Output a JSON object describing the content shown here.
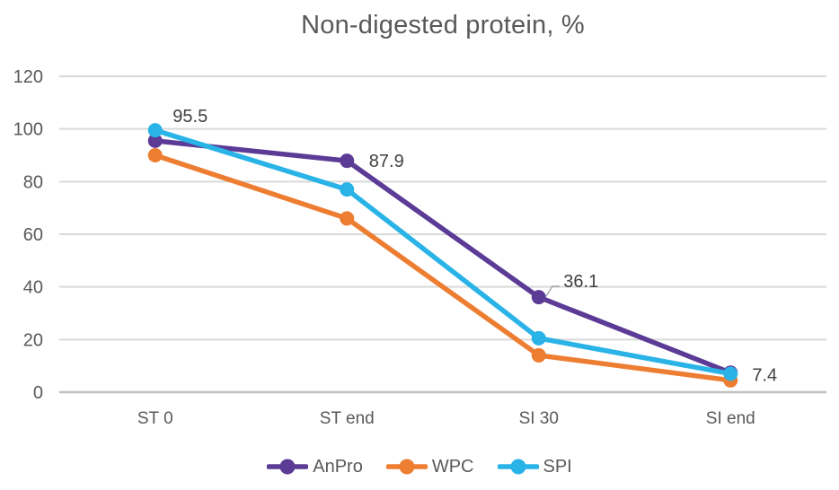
{
  "chart_data": {
    "type": "line",
    "title": "Non-digested protein, %",
    "categories": [
      "ST 0",
      "ST end",
      "SI 30",
      "SI end"
    ],
    "xlabel": "",
    "ylabel": "",
    "ylim": [
      0,
      120
    ],
    "y_ticks": [
      0,
      20,
      40,
      60,
      80,
      100,
      120
    ],
    "grid": true,
    "legend_position": "bottom",
    "series": [
      {
        "name": "AnPro",
        "color": "#5B3B96",
        "values": [
          95.5,
          87.9,
          36.1,
          7.4
        ],
        "data_labels": [
          "95.5",
          "87.9",
          "36.1",
          "7.4"
        ]
      },
      {
        "name": "WPC",
        "color": "#ED7D31",
        "values": [
          90,
          66,
          14,
          4.5
        ]
      },
      {
        "name": "SPI",
        "color": "#29B3E7",
        "values": [
          99.5,
          77,
          20.5,
          7
        ]
      }
    ],
    "colors": {
      "gridline": "#D9D9D9",
      "axis_line": "#BFBFBF",
      "tick_text": "#595959",
      "category_text": "#595959",
      "title_text": "#595959",
      "data_label_text": "#404040",
      "leader_line": "#A6A6A6",
      "background": "#FFFFFF"
    }
  }
}
